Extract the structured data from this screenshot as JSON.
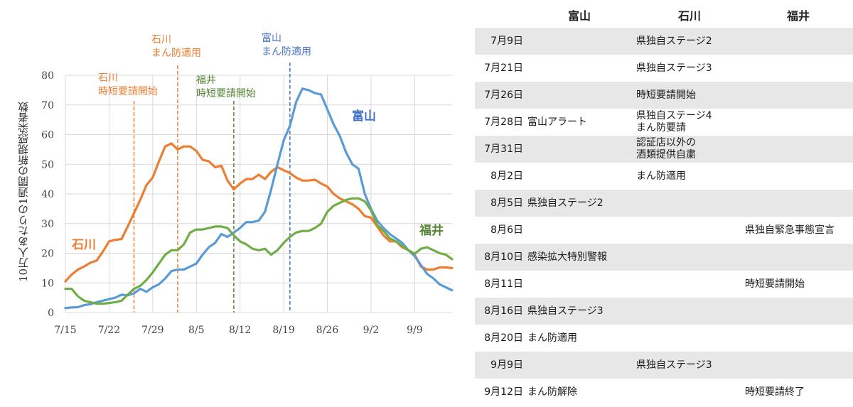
{
  "chart_data": {
    "type": "line",
    "ylabel": "10万人あたりの1週間の新規感染者数",
    "ylim": [
      0,
      80
    ],
    "yticks": [
      0,
      10,
      20,
      30,
      40,
      50,
      60,
      70,
      80
    ],
    "x_start": "7/15",
    "x_end": "9/14",
    "xticks": [
      "7/15",
      "7/22",
      "7/29",
      "8/5",
      "8/12",
      "8/19",
      "8/26",
      "9/2",
      "9/9"
    ],
    "grid": true,
    "series": [
      {
        "name": "石川",
        "color": "#ed7d31",
        "values": [
          10.5,
          12.8,
          14.5,
          15.5,
          16.8,
          17.5,
          20.5,
          24.0,
          24.5,
          24.8,
          29.0,
          33.5,
          38.0,
          43.0,
          45.5,
          51.0,
          56.0,
          57.0,
          55.0,
          56.0,
          56.0,
          54.5,
          51.5,
          51.0,
          49.0,
          49.5,
          44.5,
          41.5,
          43.5,
          45.0,
          45.0,
          46.5,
          45.0,
          47.5,
          49.0,
          48.0,
          47.0,
          45.5,
          44.5,
          44.5,
          44.8,
          43.5,
          42.5,
          40.0,
          38.5,
          37.5,
          36.5,
          35.0,
          32.5,
          32.0,
          29.0,
          26.0,
          24.0,
          24.0,
          22.0,
          21.0,
          19.5,
          15.5,
          14.5,
          14.5,
          15.2,
          15.2,
          15.0
        ]
      },
      {
        "name": "富山",
        "color": "#5b9bd5",
        "values": [
          1.5,
          1.7,
          1.8,
          2.5,
          2.8,
          3.5,
          4.0,
          4.5,
          5.0,
          6.0,
          5.8,
          6.5,
          8.0,
          7.0,
          8.5,
          9.5,
          11.5,
          14.0,
          14.5,
          14.5,
          15.5,
          16.5,
          19.5,
          22.0,
          23.5,
          26.5,
          25.5,
          27.0,
          28.5,
          30.5,
          30.5,
          31.0,
          34.0,
          41.5,
          50.0,
          58.0,
          63.0,
          71.0,
          75.5,
          75.0,
          74.0,
          73.5,
          68.5,
          63.5,
          59.5,
          54.0,
          50.0,
          48.5,
          40.0,
          35.0,
          31.0,
          28.5,
          26.5,
          25.0,
          23.5,
          21.0,
          19.0,
          16.0,
          13.0,
          11.5,
          9.5,
          8.5,
          7.5
        ]
      },
      {
        "name": "福井",
        "color": "#70ad47",
        "values": [
          8.0,
          8.0,
          5.5,
          4.0,
          3.5,
          3.0,
          3.0,
          3.2,
          3.5,
          4.0,
          6.0,
          8.0,
          9.0,
          11.0,
          13.5,
          16.5,
          19.5,
          21.0,
          21.0,
          23.0,
          27.0,
          28.0,
          28.0,
          28.5,
          29.0,
          29.0,
          28.5,
          26.0,
          24.0,
          23.0,
          21.5,
          21.0,
          21.5,
          19.5,
          21.0,
          23.5,
          25.5,
          27.0,
          27.5,
          27.5,
          28.5,
          30.0,
          34.0,
          36.0,
          37.0,
          38.0,
          38.5,
          38.5,
          37.5,
          34.5,
          29.5,
          27.5,
          25.0,
          24.0,
          22.5,
          21.0,
          19.8,
          21.5,
          22.0,
          21.0,
          20.0,
          19.5,
          18.0
        ]
      }
    ]
  },
  "annotations": [
    {
      "label": "石川\n時短要請開始",
      "date": "7/26",
      "color": "#ed7d31"
    },
    {
      "label": "石川\nまん防適用",
      "date": "8/2",
      "color": "#ed7d31"
    },
    {
      "label": "福井\n時短要請開始",
      "date": "8/11",
      "color": "#548235"
    },
    {
      "label": "富山\nまん防適用",
      "date": "8/20",
      "color": "#4472c4"
    }
  ],
  "series_labels": {
    "ishikawa": "石川",
    "toyama": "富山",
    "fukui": "福井"
  },
  "table": {
    "headers": {
      "toyama": "富山",
      "ishikawa": "石川",
      "fukui": "福井"
    },
    "rows": [
      {
        "date": "7月9日",
        "toyama": "",
        "ishikawa": "県独自ステージ2",
        "fukui": ""
      },
      {
        "date": "7月21日",
        "toyama": "",
        "ishikawa": "県独自ステージ3",
        "fukui": ""
      },
      {
        "date": "7月26日",
        "toyama": "",
        "ishikawa": "時短要請開始",
        "fukui": ""
      },
      {
        "date": "7月28日",
        "toyama": "富山アラート",
        "ishikawa": "県独自ステージ4\nまん防要請",
        "fukui": ""
      },
      {
        "date": "7月31日",
        "toyama": "",
        "ishikawa": "認証店以外の\n酒類提供自粛",
        "fukui": ""
      },
      {
        "date": "8月2日",
        "toyama": "",
        "ishikawa": "まん防適用",
        "fukui": ""
      },
      {
        "date": "8月5日",
        "toyama": "県独自ステージ2",
        "ishikawa": "",
        "fukui": ""
      },
      {
        "date": "8月6日",
        "toyama": "",
        "ishikawa": "",
        "fukui": "県独自緊急事態宣言"
      },
      {
        "date": "8月10日",
        "toyama": "感染拡大特別警報",
        "ishikawa": "",
        "fukui": ""
      },
      {
        "date": "8月11日",
        "toyama": "",
        "ishikawa": "",
        "fukui": "時短要請開始"
      },
      {
        "date": "8月16日",
        "toyama": "県独自ステージ3",
        "ishikawa": "",
        "fukui": ""
      },
      {
        "date": "8月20日",
        "toyama": "まん防適用",
        "ishikawa": "",
        "fukui": ""
      },
      {
        "date": "9月9日",
        "toyama": "",
        "ishikawa": "県独自ステージ3",
        "fukui": ""
      },
      {
        "date": "9月12日",
        "toyama": "まん防解除",
        "ishikawa": "",
        "fukui": "時短要請終了"
      }
    ]
  }
}
